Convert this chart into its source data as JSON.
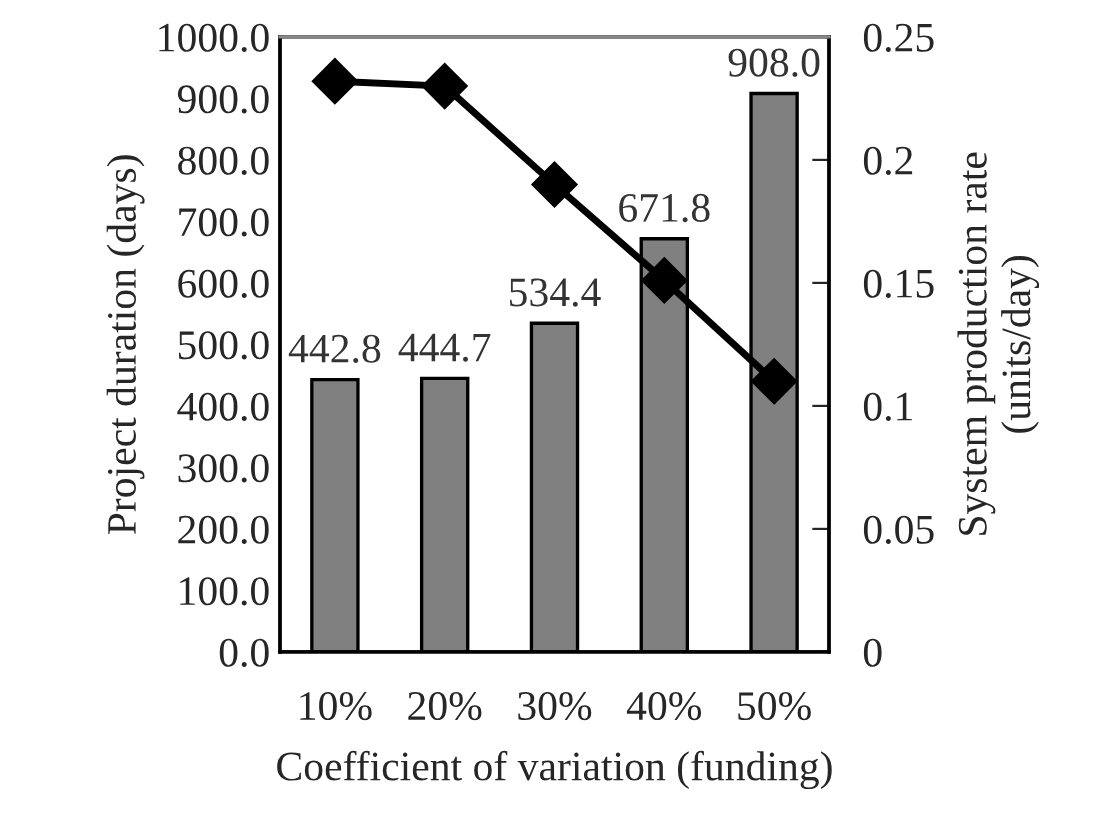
{
  "chart_data": {
    "type": "bar",
    "xlabel": "Coefficient of variation (funding)",
    "ylabel": "Project duration (days)",
    "y2label": "System production rate\n(units/day)",
    "categories": [
      "10%",
      "20%",
      "30%",
      "40%",
      "50%"
    ],
    "series": [
      {
        "color": "#808080",
        "values": [
          442.8,
          444.7,
          534.4,
          671.8,
          908.0
        ],
        "value_labels": [
          "442.8",
          "444.7",
          "534.4",
          "671.8",
          "908.0"
        ]
      },
      {
        "type": "line",
        "axis": "y2",
        "color": "#000000",
        "marker": "diamond",
        "values": [
          0.232,
          0.23,
          0.19,
          0.151,
          0.11
        ]
      }
    ],
    "ylim": [
      0,
      1000
    ],
    "yticks": [
      {
        "value": 0,
        "label": "0.0"
      },
      {
        "value": 100,
        "label": "100.0"
      },
      {
        "value": 200,
        "label": "200.0"
      },
      {
        "value": 300,
        "label": "300.0"
      },
      {
        "value": 400,
        "label": "400.0"
      },
      {
        "value": 500,
        "label": "500.0"
      },
      {
        "value": 600,
        "label": "600.0"
      },
      {
        "value": 700,
        "label": "700.0"
      },
      {
        "value": 800,
        "label": "800.0"
      },
      {
        "value": 900,
        "label": "900.0"
      },
      {
        "value": 1000,
        "label": "1000.0"
      }
    ],
    "y2lim": [
      0,
      0.25
    ],
    "y2ticks": [
      0,
      0.05,
      0.1,
      0.15,
      0.2,
      0.25
    ],
    "grid": false,
    "legend": false
  }
}
